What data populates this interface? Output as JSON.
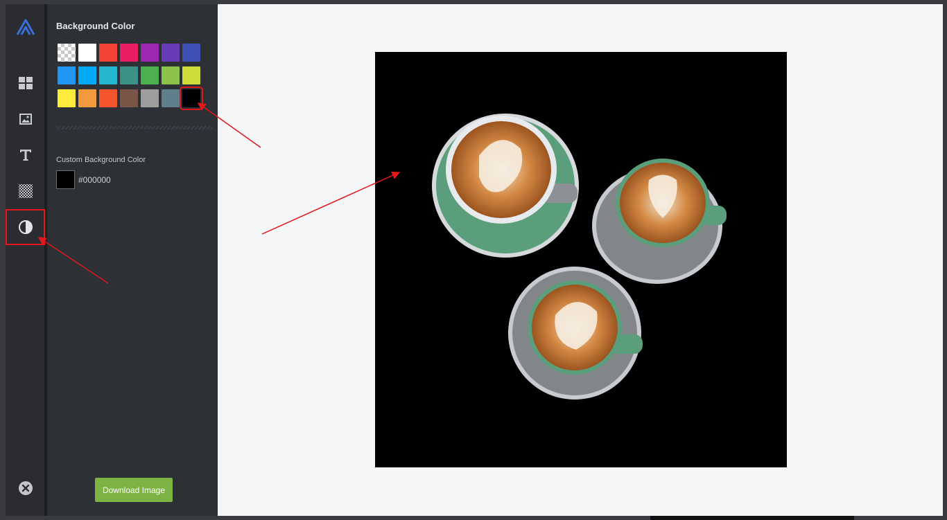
{
  "app": {
    "logo_icon": "brand-logo-icon",
    "rail": [
      {
        "id": "layouts",
        "icon": "layout-grid-icon"
      },
      {
        "id": "images",
        "icon": "image-icon"
      },
      {
        "id": "text",
        "icon": "text-icon"
      },
      {
        "id": "pattern",
        "icon": "checkerboard-icon"
      },
      {
        "id": "background",
        "icon": "contrast-icon",
        "active": true
      }
    ],
    "close_icon": "close-icon"
  },
  "panel": {
    "title": "Background Color",
    "swatches": [
      {
        "name": "transparent",
        "color": "transparent"
      },
      {
        "name": "white",
        "color": "#ffffff"
      },
      {
        "name": "red",
        "color": "#f44336"
      },
      {
        "name": "pink",
        "color": "#e91e63"
      },
      {
        "name": "purple",
        "color": "#9c27b0"
      },
      {
        "name": "deep-purple",
        "color": "#673ab7"
      },
      {
        "name": "indigo",
        "color": "#3f51b5"
      },
      {
        "name": "blue",
        "color": "#2196f3"
      },
      {
        "name": "light-blue",
        "color": "#03a9f4"
      },
      {
        "name": "cyan",
        "color": "#26b7d0"
      },
      {
        "name": "teal",
        "color": "#3c9186"
      },
      {
        "name": "green",
        "color": "#4caf50"
      },
      {
        "name": "light-green",
        "color": "#8bc34a"
      },
      {
        "name": "lime",
        "color": "#cddc39"
      },
      {
        "name": "yellow",
        "color": "#ffeb3b"
      },
      {
        "name": "orange",
        "color": "#f29a3e"
      },
      {
        "name": "deep-orange",
        "color": "#f4552f"
      },
      {
        "name": "brown",
        "color": "#795548"
      },
      {
        "name": "grey",
        "color": "#9e9e9e"
      },
      {
        "name": "blue-grey",
        "color": "#607d8b"
      },
      {
        "name": "black",
        "color": "#000000",
        "selected": true
      }
    ],
    "custom_label": "Custom Background Color",
    "custom_value": "#000000",
    "download_label": "Download Image"
  },
  "canvas": {
    "background": "#000000",
    "image_description_icon": "coffee-cups-image"
  }
}
